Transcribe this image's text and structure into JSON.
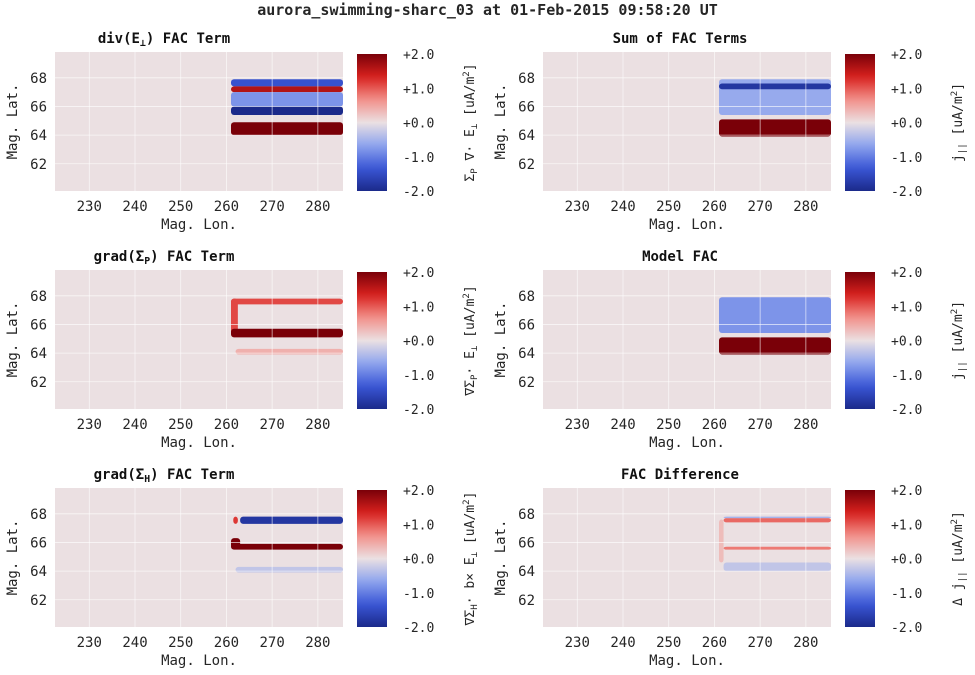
{
  "title": "aurora_swimming-sharc_03 at 01-Feb-2015 09:58:20 UT",
  "colors": {
    "background": "#ebe0e2",
    "gridline": "#ffffff",
    "colormap": [
      "#1b2a8a",
      "#3a56d6",
      "#8ea4ee",
      "#ebe0e2",
      "#f2908a",
      "#d8211e",
      "#7a0008"
    ]
  },
  "chart_data": [
    {
      "type": "heatmap",
      "title_parts": [
        "div(E",
        "⊥",
        ") FAC Term"
      ],
      "xlabel": "Mag. Lon.",
      "ylabel": "Mag. Lat.",
      "xticks": [
        230,
        240,
        250,
        260,
        270,
        280
      ],
      "yticks": [
        62,
        64,
        66,
        68
      ],
      "xlim": [
        222.5,
        285.5
      ],
      "ylim": [
        60.1,
        69.8
      ],
      "colorbar": {
        "ticks": [
          "+2.0",
          "+1.0",
          "+0.0",
          "-1.0",
          "-2.0"
        ],
        "clim": [
          -2,
          2
        ],
        "label_parts": [
          "Σ",
          "P",
          " ∇· E",
          "⊥",
          " [uA/m",
          "2",
          "]"
        ]
      },
      "features": [
        {
          "lon": [
            261,
            285.5
          ],
          "lat": [
            67.4,
            67.9
          ],
          "value": -1.4
        },
        {
          "lon": [
            261,
            285.5
          ],
          "lat": [
            67.0,
            67.4
          ],
          "value": 1.6
        },
        {
          "lon": [
            261,
            285.5
          ],
          "lat": [
            66.0,
            67.0
          ],
          "value": -0.8
        },
        {
          "lon": [
            261,
            285.5
          ],
          "lat": [
            65.4,
            66.0
          ],
          "value": -2.0
        },
        {
          "lon": [
            261,
            285.5
          ],
          "lat": [
            64.0,
            64.9
          ],
          "value": 2.0
        }
      ]
    },
    {
      "type": "heatmap",
      "title_parts": [
        "Sum of FAC Terms"
      ],
      "xlabel": "Mag. Lon.",
      "ylabel": "Mag. Lat.",
      "xticks": [
        230,
        240,
        250,
        260,
        270,
        280
      ],
      "yticks": [
        62,
        64,
        66,
        68
      ],
      "xlim": [
        222.5,
        285.5
      ],
      "ylim": [
        60.1,
        69.8
      ],
      "colorbar": {
        "ticks": [
          "+2.0",
          "+1.0",
          "+0.0",
          "-1.0",
          "-2.0"
        ],
        "clim": [
          -2,
          2
        ],
        "label_parts": [
          "j",
          "||",
          " [uA/m",
          "2",
          "]"
        ]
      },
      "features": [
        {
          "lon": [
            261,
            285.5
          ],
          "lat": [
            65.4,
            67.9
          ],
          "value": -0.6
        },
        {
          "lon": [
            261,
            285.5
          ],
          "lat": [
            67.2,
            67.6
          ],
          "value": -1.8
        },
        {
          "lon": [
            261,
            285.5
          ],
          "lat": [
            63.9,
            65.1
          ],
          "value": 2.0
        }
      ]
    },
    {
      "type": "heatmap",
      "title_parts": [
        "grad(Σ",
        "P",
        ") FAC Term"
      ],
      "xlabel": "Mag. Lon.",
      "ylabel": "Mag. Lat.",
      "xticks": [
        230,
        240,
        250,
        260,
        270,
        280
      ],
      "yticks": [
        62,
        64,
        66,
        68
      ],
      "xlim": [
        222.5,
        285.5
      ],
      "ylim": [
        60.1,
        69.8
      ],
      "colorbar": {
        "ticks": [
          "+2.0",
          "+1.0",
          "+0.0",
          "-1.0",
          "-2.0"
        ],
        "clim": [
          -2,
          2
        ],
        "label_parts": [
          "∇Σ",
          "P",
          "· E",
          "⊥",
          " [uA/m",
          "2",
          "]"
        ]
      },
      "features": [
        {
          "lon": [
            261,
            285.5
          ],
          "lat": [
            67.4,
            67.8
          ],
          "value": 1.1
        },
        {
          "lon": [
            261,
            262.5
          ],
          "lat": [
            65.2,
            67.8
          ],
          "value": 1.1
        },
        {
          "lon": [
            261,
            285.5
          ],
          "lat": [
            65.1,
            65.7
          ],
          "value": 2.0
        },
        {
          "lon": [
            262,
            285.5
          ],
          "lat": [
            63.9,
            64.3
          ],
          "value": 0.4
        }
      ]
    },
    {
      "type": "heatmap",
      "title_parts": [
        "Model FAC"
      ],
      "xlabel": "Mag. Lon.",
      "ylabel": "Mag. Lat.",
      "xticks": [
        230,
        240,
        250,
        260,
        270,
        280
      ],
      "yticks": [
        62,
        64,
        66,
        68
      ],
      "xlim": [
        222.5,
        285.5
      ],
      "ylim": [
        60.1,
        69.8
      ],
      "colorbar": {
        "ticks": [
          "+2.0",
          "+1.0",
          "+0.0",
          "-1.0",
          "-2.0"
        ],
        "clim": [
          -2,
          2
        ],
        "label_parts": [
          "j",
          "||",
          " [uA/m",
          "2",
          "]"
        ]
      },
      "features": [
        {
          "lon": [
            261,
            285.5
          ],
          "lat": [
            65.4,
            67.9
          ],
          "value": -0.8
        },
        {
          "lon": [
            261,
            285.5
          ],
          "lat": [
            63.9,
            65.1
          ],
          "value": 2.0
        }
      ]
    },
    {
      "type": "heatmap",
      "title_parts": [
        "grad(Σ",
        "H",
        ") FAC Term"
      ],
      "xlabel": "Mag. Lon.",
      "ylabel": "Mag. Lat.",
      "xticks": [
        230,
        240,
        250,
        260,
        270,
        280
      ],
      "yticks": [
        62,
        64,
        66,
        68
      ],
      "xlim": [
        222.5,
        285.5
      ],
      "ylim": [
        60.1,
        69.8
      ],
      "colorbar": {
        "ticks": [
          "+2.0",
          "+1.0",
          "+0.0",
          "-1.0",
          "-2.0"
        ],
        "clim": [
          -2,
          2
        ],
        "label_parts": [
          "∇Σ",
          "H",
          "· b× E",
          "⊥",
          " [uA/m",
          "2",
          "]"
        ]
      },
      "features": [
        {
          "lon": [
            263,
            285.5
          ],
          "lat": [
            67.3,
            67.8
          ],
          "value": -1.8
        },
        {
          "lon": [
            261.5,
            262.5
          ],
          "lat": [
            67.3,
            67.8
          ],
          "value": 1.2
        },
        {
          "lon": [
            261,
            263
          ],
          "lat": [
            65.6,
            66.3
          ],
          "value": 2.0
        },
        {
          "lon": [
            261,
            285.5
          ],
          "lat": [
            65.5,
            65.9
          ],
          "value": 2.0
        },
        {
          "lon": [
            262,
            285.5
          ],
          "lat": [
            63.9,
            64.3
          ],
          "value": -0.3
        }
      ]
    },
    {
      "type": "heatmap",
      "title_parts": [
        "FAC Difference"
      ],
      "xlabel": "Mag. Lon.",
      "ylabel": "Mag. Lat.",
      "xticks": [
        230,
        240,
        250,
        260,
        270,
        280
      ],
      "yticks": [
        62,
        64,
        66,
        68
      ],
      "xlim": [
        222.5,
        285.5
      ],
      "ylim": [
        60.1,
        69.8
      ],
      "colorbar": {
        "ticks": [
          "+2.0",
          "+1.0",
          "+0.0",
          "-1.0",
          "-2.0"
        ],
        "clim": [
          -2,
          2
        ],
        "label_parts": [
          "Δ j",
          "||",
          " [uA/m",
          "2",
          "]"
        ]
      },
      "features": [
        {
          "lon": [
            262,
            285.5
          ],
          "lat": [
            67.4,
            67.7
          ],
          "value": 0.9
        },
        {
          "lon": [
            262,
            285.5
          ],
          "lat": [
            67.7,
            67.8
          ],
          "value": -0.5
        },
        {
          "lon": [
            262,
            285.5
          ],
          "lat": [
            65.5,
            65.7
          ],
          "value": 0.8
        },
        {
          "lon": [
            262,
            285.5
          ],
          "lat": [
            64.0,
            64.6
          ],
          "value": -0.3
        },
        {
          "lon": [
            261,
            262
          ],
          "lat": [
            64.6,
            67.6
          ],
          "value": 0.3
        }
      ]
    }
  ]
}
